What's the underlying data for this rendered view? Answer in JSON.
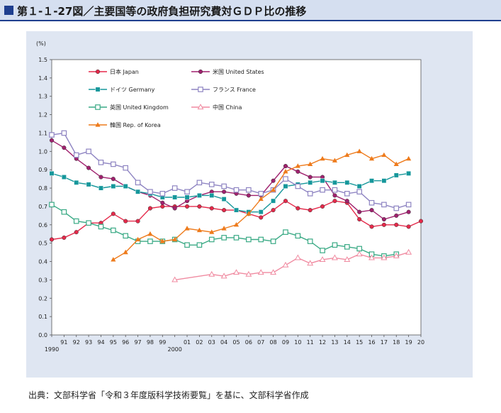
{
  "title": "第１-１-27図／主要国等の政府負担研究費対ＧＤＰ比の推移",
  "source": "出典：文部科学省「令和３年度版科学技術要覧」を基に、文部科学省作成",
  "chart_data": {
    "type": "line",
    "ylabel": "(%)",
    "ylim": [
      0,
      1.5
    ],
    "yticks": [
      "0.0",
      "0.1",
      "0.2",
      "0.3",
      "0.4",
      "0.5",
      "0.6",
      "0.7",
      "0.8",
      "0.9",
      "1.0",
      "1.1",
      "1.2",
      "1.3",
      "1.4",
      "1.5"
    ],
    "xlim": [
      1990,
      2020
    ],
    "xtick_labels": [
      {
        "year": 1990,
        "label": "1990",
        "row": 2
      },
      {
        "year": 1991,
        "label": "91",
        "row": 1
      },
      {
        "year": 1992,
        "label": "92",
        "row": 1
      },
      {
        "year": 1993,
        "label": "93",
        "row": 1
      },
      {
        "year": 1994,
        "label": "94",
        "row": 1
      },
      {
        "year": 1995,
        "label": "95",
        "row": 1
      },
      {
        "year": 1996,
        "label": "96",
        "row": 1
      },
      {
        "year": 1997,
        "label": "97",
        "row": 1
      },
      {
        "year": 1998,
        "label": "98",
        "row": 1
      },
      {
        "year": 1999,
        "label": "99",
        "row": 1
      },
      {
        "year": 2000,
        "label": "2000",
        "row": 2
      },
      {
        "year": 2001,
        "label": "01",
        "row": 1
      },
      {
        "year": 2002,
        "label": "02",
        "row": 1
      },
      {
        "year": 2003,
        "label": "03",
        "row": 1
      },
      {
        "year": 2004,
        "label": "04",
        "row": 1
      },
      {
        "year": 2005,
        "label": "05",
        "row": 1
      },
      {
        "year": 2006,
        "label": "06",
        "row": 1
      },
      {
        "year": 2007,
        "label": "07",
        "row": 1
      },
      {
        "year": 2008,
        "label": "08",
        "row": 1
      },
      {
        "year": 2009,
        "label": "09",
        "row": 1
      },
      {
        "year": 2010,
        "label": "10",
        "row": 1
      },
      {
        "year": 2011,
        "label": "11",
        "row": 1
      },
      {
        "year": 2012,
        "label": "12",
        "row": 1
      },
      {
        "year": 2013,
        "label": "13",
        "row": 1
      },
      {
        "year": 2014,
        "label": "14",
        "row": 1
      },
      {
        "year": 2015,
        "label": "15",
        "row": 1
      },
      {
        "year": 2016,
        "label": "16",
        "row": 1
      },
      {
        "year": 2017,
        "label": "17",
        "row": 1
      },
      {
        "year": 2018,
        "label": "18",
        "row": 1
      },
      {
        "year": 2019,
        "label": "19",
        "row": 1
      },
      {
        "year": 2020,
        "label": "20",
        "row": 1
      }
    ],
    "grid": false,
    "legend_position": "top-left",
    "series": [
      {
        "name": "日本 Japan",
        "color": "#e5294a",
        "marker": "circle",
        "data": [
          [
            1990,
            0.52
          ],
          [
            1991,
            0.53
          ],
          [
            1992,
            0.56
          ],
          [
            1993,
            0.61
          ],
          [
            1994,
            0.61
          ],
          [
            1995,
            0.66
          ],
          [
            1996,
            0.62
          ],
          [
            1997,
            0.62
          ],
          [
            1998,
            0.69
          ],
          [
            1999,
            0.7
          ],
          [
            2000,
            0.7
          ],
          [
            2001,
            0.7
          ],
          [
            2002,
            0.7
          ],
          [
            2003,
            0.69
          ],
          [
            2004,
            0.68
          ],
          [
            2005,
            0.68
          ],
          [
            2006,
            0.66
          ],
          [
            2007,
            0.64
          ],
          [
            2008,
            0.68
          ],
          [
            2009,
            0.73
          ],
          [
            2010,
            0.69
          ],
          [
            2011,
            0.68
          ],
          [
            2012,
            0.7
          ],
          [
            2013,
            0.73
          ],
          [
            2014,
            0.72
          ],
          [
            2015,
            0.63
          ],
          [
            2016,
            0.59
          ],
          [
            2017,
            0.6
          ],
          [
            2018,
            0.6
          ],
          [
            2019,
            0.59
          ],
          [
            2020,
            0.62
          ]
        ]
      },
      {
        "name": "米国 United States",
        "color": "#a0216e",
        "marker": "circle",
        "data": [
          [
            1990,
            1.06
          ],
          [
            1991,
            1.02
          ],
          [
            1992,
            0.96
          ],
          [
            1993,
            0.91
          ],
          [
            1994,
            0.86
          ],
          [
            1995,
            0.85
          ],
          [
            1996,
            0.81
          ],
          [
            1997,
            0.78
          ],
          [
            1998,
            0.76
          ],
          [
            1999,
            0.72
          ],
          [
            2000,
            0.69
          ],
          [
            2001,
            0.73
          ],
          [
            2002,
            0.76
          ],
          [
            2003,
            0.78
          ],
          [
            2004,
            0.78
          ],
          [
            2005,
            0.77
          ],
          [
            2006,
            0.76
          ],
          [
            2007,
            0.76
          ],
          [
            2008,
            0.84
          ],
          [
            2009,
            0.92
          ],
          [
            2010,
            0.89
          ],
          [
            2011,
            0.86
          ],
          [
            2012,
            0.86
          ],
          [
            2013,
            0.76
          ],
          [
            2014,
            0.73
          ],
          [
            2015,
            0.67
          ],
          [
            2016,
            0.68
          ],
          [
            2017,
            0.63
          ],
          [
            2018,
            0.65
          ],
          [
            2019,
            0.67
          ]
        ]
      },
      {
        "name": "ドイツ Germany",
        "color": "#16979b",
        "marker": "square",
        "data": [
          [
            1990,
            0.88
          ],
          [
            1991,
            0.86
          ],
          [
            1992,
            0.83
          ],
          [
            1993,
            0.82
          ],
          [
            1994,
            0.8
          ],
          [
            1995,
            0.81
          ],
          [
            1996,
            0.81
          ],
          [
            1997,
            0.78
          ],
          [
            1998,
            0.77
          ],
          [
            1999,
            0.75
          ],
          [
            2000,
            0.75
          ],
          [
            2001,
            0.75
          ],
          [
            2002,
            0.76
          ],
          [
            2003,
            0.76
          ],
          [
            2004,
            0.74
          ],
          [
            2005,
            0.68
          ],
          [
            2006,
            0.67
          ],
          [
            2007,
            0.67
          ],
          [
            2008,
            0.73
          ],
          [
            2009,
            0.81
          ],
          [
            2010,
            0.82
          ],
          [
            2011,
            0.83
          ],
          [
            2012,
            0.84
          ],
          [
            2013,
            0.83
          ],
          [
            2014,
            0.83
          ],
          [
            2015,
            0.81
          ],
          [
            2016,
            0.84
          ],
          [
            2017,
            0.84
          ],
          [
            2018,
            0.87
          ],
          [
            2019,
            0.88
          ]
        ]
      },
      {
        "name": "フランス France",
        "color": "#8e84c2",
        "marker": "square-open",
        "data": [
          [
            1990,
            1.09
          ],
          [
            1991,
            1.1
          ],
          [
            1992,
            0.98
          ],
          [
            1993,
            1.0
          ],
          [
            1994,
            0.94
          ],
          [
            1995,
            0.93
          ],
          [
            1996,
            0.91
          ],
          [
            1997,
            0.83
          ],
          [
            1998,
            0.78
          ],
          [
            1999,
            0.77
          ],
          [
            2000,
            0.8
          ],
          [
            2001,
            0.78
          ],
          [
            2002,
            0.83
          ],
          [
            2003,
            0.82
          ],
          [
            2004,
            0.81
          ],
          [
            2005,
            0.79
          ],
          [
            2006,
            0.79
          ],
          [
            2007,
            0.77
          ],
          [
            2008,
            0.79
          ],
          [
            2009,
            0.85
          ],
          [
            2010,
            0.81
          ],
          [
            2011,
            0.77
          ],
          [
            2012,
            0.79
          ],
          [
            2013,
            0.79
          ],
          [
            2014,
            0.77
          ],
          [
            2015,
            0.78
          ],
          [
            2016,
            0.72
          ],
          [
            2017,
            0.71
          ],
          [
            2018,
            0.69
          ],
          [
            2019,
            0.71
          ]
        ]
      },
      {
        "name": "英国 United Kingdom",
        "color": "#3aaa85",
        "marker": "square-open",
        "data": [
          [
            1990,
            0.71
          ],
          [
            1991,
            0.67
          ],
          [
            1992,
            0.62
          ],
          [
            1993,
            0.61
          ],
          [
            1994,
            0.59
          ],
          [
            1995,
            0.57
          ],
          [
            1996,
            0.54
          ],
          [
            1997,
            0.51
          ],
          [
            1998,
            0.51
          ],
          [
            1999,
            0.51
          ],
          [
            2000,
            0.52
          ],
          [
            2001,
            0.49
          ],
          [
            2002,
            0.49
          ],
          [
            2003,
            0.52
          ],
          [
            2004,
            0.53
          ],
          [
            2005,
            0.53
          ],
          [
            2006,
            0.52
          ],
          [
            2007,
            0.52
          ],
          [
            2008,
            0.51
          ],
          [
            2009,
            0.56
          ],
          [
            2010,
            0.54
          ],
          [
            2011,
            0.51
          ],
          [
            2012,
            0.46
          ],
          [
            2013,
            0.49
          ],
          [
            2014,
            0.48
          ],
          [
            2015,
            0.47
          ],
          [
            2016,
            0.44
          ],
          [
            2017,
            0.43
          ],
          [
            2018,
            0.44
          ]
        ]
      },
      {
        "name": "中国 China",
        "color": "#f08aa0",
        "marker": "triangle-open",
        "data": [
          [
            2000,
            0.3
          ],
          [
            2003,
            0.33
          ],
          [
            2004,
            0.32
          ],
          [
            2005,
            0.34
          ],
          [
            2006,
            0.33
          ],
          [
            2007,
            0.34
          ],
          [
            2008,
            0.34
          ],
          [
            2009,
            0.38
          ],
          [
            2010,
            0.42
          ],
          [
            2011,
            0.39
          ],
          [
            2012,
            0.41
          ],
          [
            2013,
            0.42
          ],
          [
            2014,
            0.41
          ],
          [
            2015,
            0.44
          ],
          [
            2016,
            0.42
          ],
          [
            2017,
            0.42
          ],
          [
            2018,
            0.43
          ],
          [
            2019,
            0.45
          ]
        ]
      },
      {
        "name": "韓国 Rep. of Korea",
        "color": "#ee7b1c",
        "marker": "triangle",
        "data": [
          [
            1995,
            0.41
          ],
          [
            1996,
            0.45
          ],
          [
            1997,
            0.52
          ],
          [
            1998,
            0.55
          ],
          [
            1999,
            0.51
          ],
          [
            2000,
            0.52
          ],
          [
            2001,
            0.58
          ],
          [
            2002,
            0.57
          ],
          [
            2003,
            0.56
          ],
          [
            2004,
            0.58
          ],
          [
            2005,
            0.6
          ],
          [
            2006,
            0.66
          ],
          [
            2007,
            0.74
          ],
          [
            2008,
            0.79
          ],
          [
            2009,
            0.89
          ],
          [
            2010,
            0.92
          ],
          [
            2011,
            0.93
          ],
          [
            2012,
            0.96
          ],
          [
            2013,
            0.95
          ],
          [
            2014,
            0.98
          ],
          [
            2015,
            1.0
          ],
          [
            2016,
            0.96
          ],
          [
            2017,
            0.98
          ],
          [
            2018,
            0.93
          ],
          [
            2019,
            0.96
          ]
        ]
      }
    ]
  }
}
